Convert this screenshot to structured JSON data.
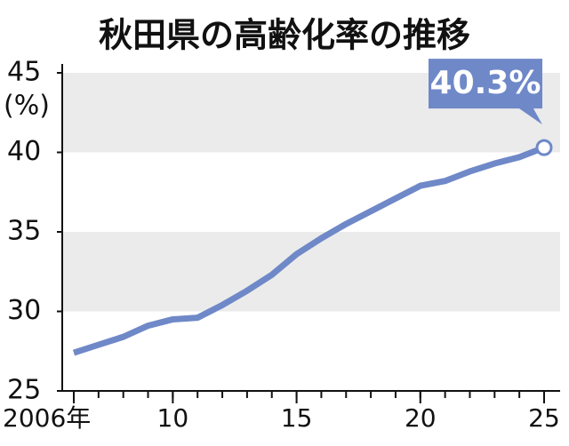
{
  "chart_data": {
    "type": "line",
    "title": "秋田県の高齢化率の推移",
    "y_label": "(%)",
    "x": [
      2006,
      2007,
      2008,
      2009,
      2010,
      2011,
      2012,
      2013,
      2014,
      2015,
      2016,
      2017,
      2018,
      2019,
      2020,
      2021,
      2022,
      2023,
      2024,
      2025
    ],
    "series": [
      {
        "color": "#6f88c8",
        "values": [
          27.4,
          27.9,
          28.4,
          29.1,
          29.5,
          29.6,
          30.4,
          31.3,
          32.3,
          33.6,
          34.6,
          35.5,
          36.3,
          37.1,
          37.9,
          38.2,
          38.8,
          39.3,
          39.7,
          40.3
        ],
        "value_labels": [
          null,
          null,
          null,
          null,
          null,
          null,
          null,
          null,
          null,
          null,
          null,
          null,
          null,
          null,
          null,
          null,
          null,
          null,
          null,
          "40.3%"
        ]
      }
    ],
    "xlim": [
      2006,
      2025
    ],
    "xticks": [
      {
        "value": 2006,
        "label": "2006年"
      },
      {
        "value": 2010,
        "label": "10"
      },
      {
        "value": 2015,
        "label": "15"
      },
      {
        "value": 2020,
        "label": "20"
      },
      {
        "value": 2025,
        "label": "25"
      }
    ],
    "ylim": [
      25,
      45
    ],
    "yticks": [
      25,
      30,
      35,
      40,
      45
    ],
    "grid": "alternate-bands",
    "band_color": "#ebebeb"
  }
}
